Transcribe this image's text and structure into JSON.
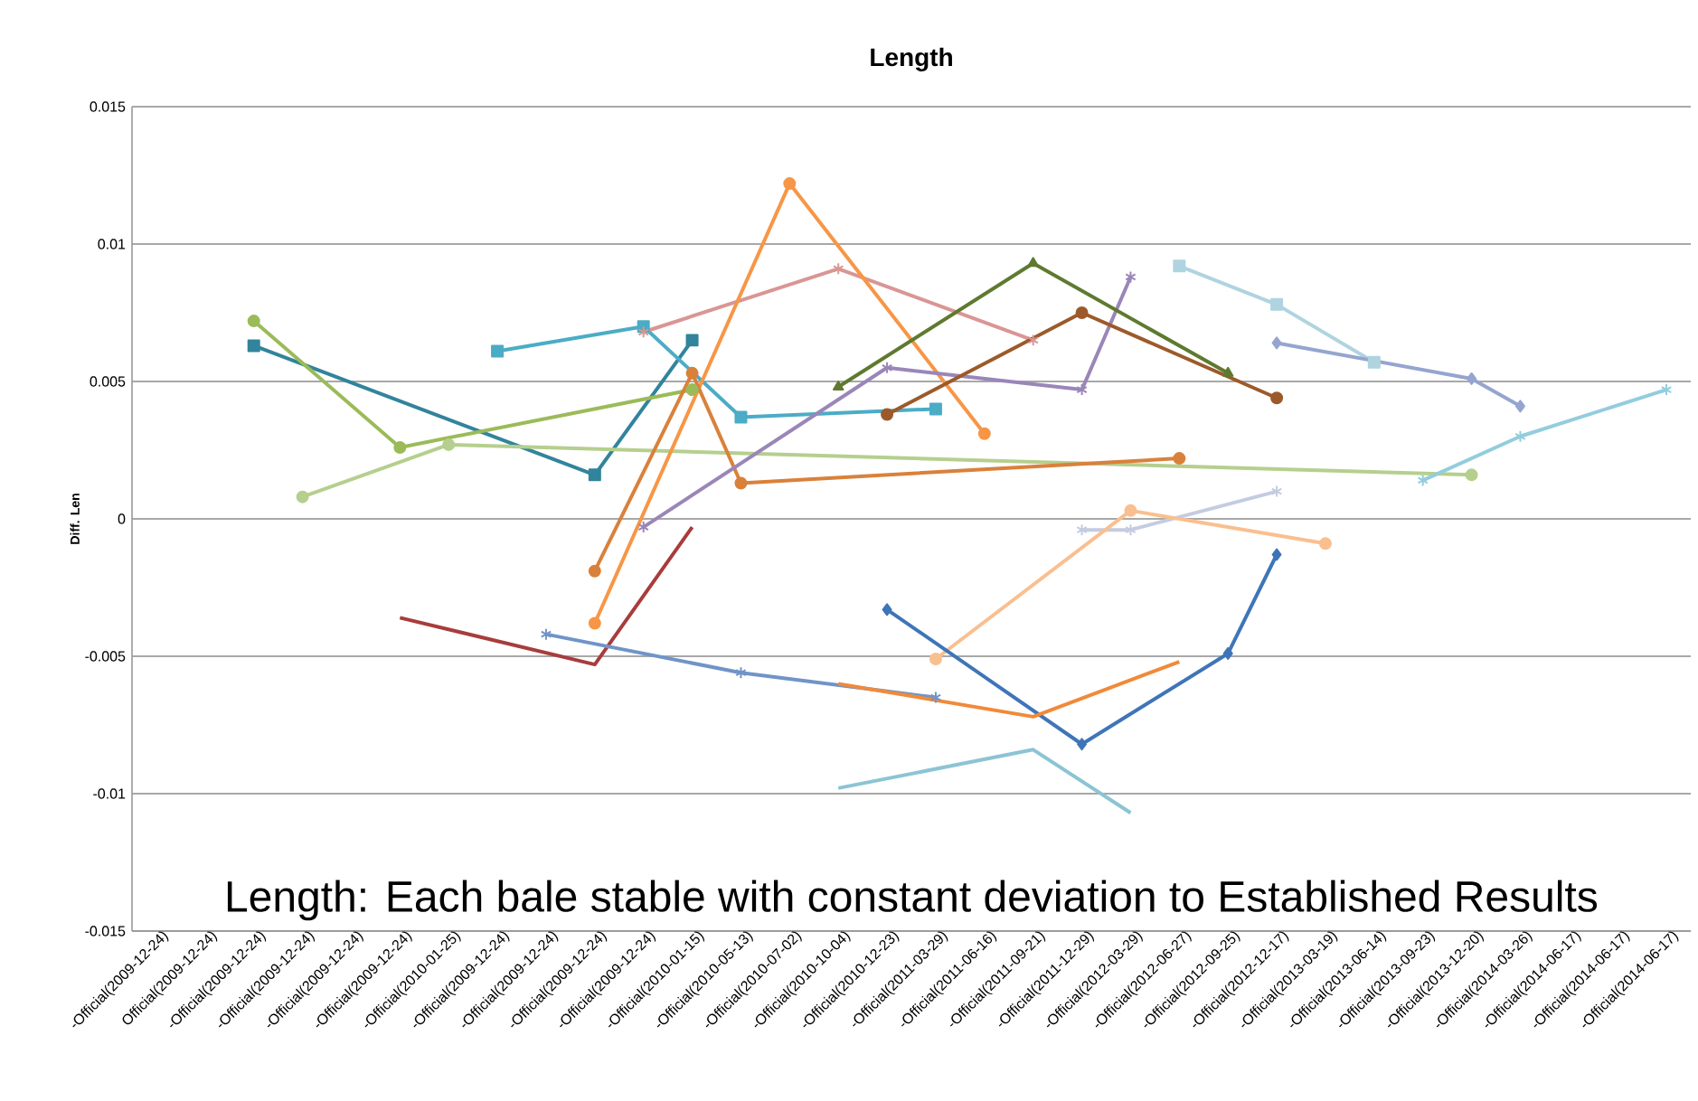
{
  "chart_data": {
    "type": "line",
    "title": "Length",
    "ylabel": "Diff. Len",
    "annotations": [
      "Length: Each bale stable with constant deviation to Established Results"
    ],
    "categories": [
      "-Official(2009-12-24)",
      "Official(2009-12-24)",
      "-Official(2009-12-24)",
      "-Official(2009-12-24)",
      "-Official(2009-12-24)",
      "-Official(2009-12-24)",
      "-Official(2010-01-25)",
      "-Official(2009-12-24)",
      "-Official(2009-12-24)",
      "-Official(2009-12-24)",
      "-Official(2009-12-24)",
      "-Official(2010-01-15)",
      "-Official(2010-05-13)",
      "-Official(2010-07-02)",
      "-Official(2010-10-04)",
      "-Official(2010-12-23)",
      "-Official(2011-03-29)",
      "-Official(2011-06-16)",
      "-Official(2011-09-21)",
      "-Official(2011-12-29)",
      "-Official(2012-03-29)",
      "-Official(2012-06-27)",
      "-Official(2012-09-25)",
      "-Official(2012-12-17)",
      "-Official(2013-03-19)",
      "-Official(2013-06-14)",
      "-Official(2013-09-23)",
      "-Official(2013-12-20)",
      "-Official(2014-03-26)",
      "-Official(2014-06-17)",
      "-Official(2014-06-17)",
      "-Official(2014-06-17)"
    ],
    "ylim": [
      -0.015,
      0.015
    ],
    "yticks": [
      -0.015,
      -0.01,
      -0.005,
      0,
      0.005,
      0.01,
      0.015
    ],
    "grid": "y",
    "line_style": "solid",
    "series": [
      {
        "color": "#31849b",
        "marker": "square",
        "values": [
          null,
          null,
          0.0063,
          null,
          null,
          null,
          null,
          null,
          null,
          0.0016,
          null,
          0.0065,
          null,
          null,
          null,
          null,
          null,
          null,
          null,
          null,
          null,
          null,
          null,
          null,
          null,
          null,
          null,
          null,
          null,
          null,
          null,
          null
        ]
      },
      {
        "color": "#9bbb59",
        "marker": "circle",
        "values": [
          null,
          null,
          0.0072,
          null,
          null,
          0.0026,
          null,
          null,
          null,
          null,
          null,
          0.0047,
          null,
          null,
          null,
          null,
          null,
          null,
          null,
          null,
          null,
          null,
          null,
          null,
          null,
          null,
          null,
          null,
          null,
          null,
          null,
          null
        ]
      },
      {
        "color": "#b5cf8e",
        "marker": "circle",
        "values": [
          null,
          null,
          null,
          0.0008,
          null,
          null,
          0.0027,
          null,
          null,
          null,
          null,
          null,
          null,
          null,
          null,
          null,
          null,
          null,
          null,
          null,
          null,
          null,
          null,
          null,
          null,
          null,
          null,
          0.0016,
          null,
          null,
          null,
          null
        ]
      },
      {
        "color": "#4bacc6",
        "marker": "square",
        "values": [
          null,
          null,
          null,
          null,
          null,
          null,
          null,
          0.0061,
          null,
          null,
          0.007,
          null,
          0.0037,
          null,
          null,
          null,
          0.004,
          null,
          null,
          null,
          null,
          null,
          null,
          null,
          null,
          null,
          null,
          null,
          null,
          null,
          null,
          null
        ]
      },
      {
        "color": "#d99694",
        "marker": "cross",
        "values": [
          null,
          null,
          null,
          null,
          null,
          null,
          null,
          null,
          null,
          null,
          0.0068,
          null,
          null,
          null,
          0.0091,
          null,
          null,
          null,
          0.0065,
          null,
          null,
          null,
          null,
          null,
          null,
          null,
          null,
          null,
          null,
          null,
          null,
          null
        ]
      },
      {
        "color": "#f79646",
        "marker": "circle",
        "values": [
          null,
          null,
          null,
          null,
          null,
          null,
          null,
          null,
          null,
          -0.0038,
          null,
          null,
          null,
          0.0122,
          null,
          null,
          null,
          0.0031,
          null,
          null,
          null,
          null,
          null,
          null,
          null,
          null,
          null,
          null,
          null,
          null,
          null,
          null
        ]
      },
      {
        "color": "#d9813b",
        "marker": "circle",
        "values": [
          null,
          null,
          null,
          null,
          null,
          null,
          null,
          null,
          null,
          -0.0019,
          null,
          0.0053,
          0.0013,
          null,
          null,
          null,
          null,
          null,
          null,
          null,
          null,
          0.0022,
          null,
          null,
          null,
          null,
          null,
          null,
          null,
          null,
          null,
          null
        ]
      },
      {
        "color": "#a83c3c",
        "marker": "none",
        "values": [
          null,
          null,
          null,
          null,
          null,
          -0.0036,
          null,
          null,
          null,
          -0.0053,
          null,
          -0.0003,
          null,
          null,
          null,
          null,
          null,
          null,
          null,
          null,
          null,
          null,
          null,
          null,
          null,
          null,
          null,
          null,
          null,
          null,
          null,
          null
        ]
      },
      {
        "color": "#9a86b8",
        "marker": "cross",
        "values": [
          null,
          null,
          null,
          null,
          null,
          null,
          null,
          null,
          null,
          null,
          -0.0003,
          null,
          null,
          null,
          null,
          0.0055,
          null,
          null,
          null,
          0.0047,
          0.0088,
          null,
          null,
          null,
          null,
          null,
          null,
          null,
          null,
          null,
          null,
          null
        ]
      },
      {
        "color": "#5f7a30",
        "marker": "triangle",
        "values": [
          null,
          null,
          null,
          null,
          null,
          null,
          null,
          null,
          null,
          null,
          null,
          null,
          null,
          null,
          0.0048,
          null,
          null,
          null,
          0.0093,
          null,
          null,
          null,
          0.0053,
          null,
          null,
          null,
          null,
          null,
          null,
          null,
          null,
          null
        ]
      },
      {
        "color": "#9c5a2a",
        "marker": "circle",
        "values": [
          null,
          null,
          null,
          null,
          null,
          null,
          null,
          null,
          null,
          null,
          null,
          null,
          null,
          null,
          null,
          0.0038,
          null,
          null,
          null,
          0.0075,
          null,
          null,
          null,
          0.0044,
          null,
          null,
          null,
          null,
          null,
          null,
          null,
          null
        ]
      },
      {
        "color": "#afd4e0",
        "marker": "square",
        "values": [
          null,
          null,
          null,
          null,
          null,
          null,
          null,
          null,
          null,
          null,
          null,
          null,
          null,
          null,
          null,
          null,
          null,
          null,
          null,
          null,
          null,
          0.0092,
          null,
          0.0078,
          null,
          0.0057,
          null,
          null,
          null,
          null,
          null,
          null
        ]
      },
      {
        "color": "#95a5cf",
        "marker": "diamond",
        "values": [
          null,
          null,
          null,
          null,
          null,
          null,
          null,
          null,
          null,
          null,
          null,
          null,
          null,
          null,
          null,
          null,
          null,
          null,
          null,
          null,
          null,
          null,
          null,
          0.0064,
          null,
          null,
          null,
          0.0051,
          0.0041,
          null,
          null,
          null
        ]
      },
      {
        "color": "#93cddd",
        "marker": "cross",
        "values": [
          null,
          null,
          null,
          null,
          null,
          null,
          null,
          null,
          null,
          null,
          null,
          null,
          null,
          null,
          null,
          null,
          null,
          null,
          null,
          null,
          null,
          null,
          null,
          null,
          null,
          null,
          0.0014,
          null,
          0.003,
          null,
          null,
          0.0047
        ]
      },
      {
        "color": "#c3cce0",
        "marker": "cross",
        "values": [
          null,
          null,
          null,
          null,
          null,
          null,
          null,
          null,
          null,
          null,
          null,
          null,
          null,
          null,
          null,
          null,
          null,
          null,
          null,
          -0.0004,
          -0.0004,
          null,
          null,
          0.001,
          null,
          null,
          null,
          null,
          null,
          null,
          null,
          null
        ]
      },
      {
        "color": "#fabf8f",
        "marker": "circle",
        "values": [
          null,
          null,
          null,
          null,
          null,
          null,
          null,
          null,
          null,
          null,
          null,
          null,
          null,
          null,
          null,
          null,
          -0.0051,
          null,
          null,
          null,
          0.0003,
          null,
          null,
          null,
          -0.0009,
          null,
          null,
          null,
          null,
          null,
          null,
          null
        ]
      },
      {
        "color": "#3f75b8",
        "marker": "diamond",
        "values": [
          null,
          null,
          null,
          null,
          null,
          null,
          null,
          null,
          null,
          null,
          null,
          null,
          null,
          null,
          null,
          -0.0033,
          null,
          null,
          null,
          -0.0082,
          null,
          null,
          -0.0049,
          -0.0013,
          null,
          null,
          null,
          null,
          null,
          null,
          null,
          null
        ]
      },
      {
        "color": "#7094c8",
        "marker": "cross",
        "values": [
          null,
          null,
          null,
          null,
          null,
          null,
          null,
          null,
          -0.0042,
          null,
          null,
          null,
          -0.0056,
          null,
          null,
          null,
          -0.0065,
          null,
          null,
          null,
          null,
          null,
          null,
          null,
          null,
          null,
          null,
          null,
          null,
          null,
          null,
          null
        ]
      },
      {
        "color": "#f08a3a",
        "marker": "none",
        "values": [
          null,
          null,
          null,
          null,
          null,
          null,
          null,
          null,
          null,
          null,
          null,
          null,
          null,
          null,
          -0.006,
          null,
          null,
          null,
          -0.0072,
          null,
          null,
          -0.0052,
          null,
          null,
          null,
          null,
          null,
          null,
          null,
          null,
          null,
          null
        ]
      },
      {
        "color": "#8cc4d4",
        "marker": "none",
        "values": [
          null,
          null,
          null,
          null,
          null,
          null,
          null,
          null,
          null,
          null,
          null,
          null,
          null,
          null,
          -0.0098,
          null,
          null,
          null,
          -0.0084,
          null,
          -0.0107,
          null,
          null,
          null,
          null,
          null,
          null,
          null,
          null,
          null,
          null,
          null
        ]
      }
    ]
  }
}
